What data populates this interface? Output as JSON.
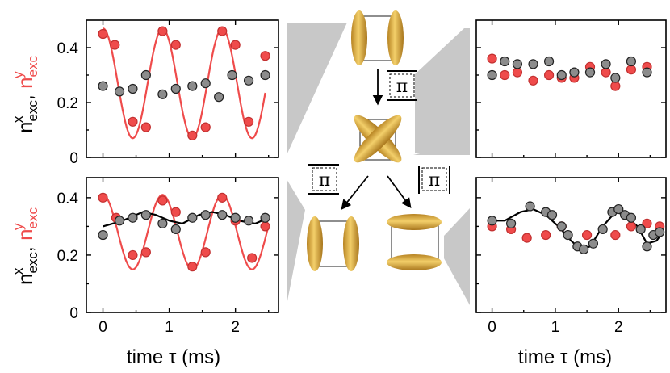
{
  "colors": {
    "x_series": "#8c8c8c",
    "y_series": "#ef4b4b",
    "y_line": "#ef4b4b",
    "x_line": "#000000",
    "ion": "#d9a43a"
  },
  "labels": {
    "xlabel": "time τ (ms)",
    "y_base": "n",
    "y_sub": "exc",
    "y_sup_x": "x",
    "y_sup_y": "y",
    "comma": " , ",
    "pi": "π"
  },
  "chart_data": [
    {
      "type": "scatter",
      "panel": "top-left",
      "xlim": [
        -0.25,
        2.65
      ],
      "ylim": [
        0,
        0.5
      ],
      "xticks": [
        0,
        1,
        2
      ],
      "yticks": [
        0,
        0.2,
        0.4
      ],
      "xticklabels": [],
      "yticklabels": [
        "0",
        "0.2",
        "0.4"
      ],
      "series": [
        {
          "id": "y",
          "points": [
            [
              0,
              0.45
            ],
            [
              0.18,
              0.41
            ],
            [
              0.45,
              0.13
            ],
            [
              0.65,
              0.11
            ],
            [
              0.9,
              0.46
            ],
            [
              1.1,
              0.41
            ],
            [
              1.35,
              0.08
            ],
            [
              1.55,
              0.11
            ],
            [
              1.8,
              0.46
            ],
            [
              2.0,
              0.41
            ],
            [
              2.2,
              0.13
            ],
            [
              2.45,
              0.37
            ]
          ]
        },
        {
          "id": "x",
          "points": [
            [
              0,
              0.26
            ],
            [
              0.25,
              0.24
            ],
            [
              0.45,
              0.25
            ],
            [
              0.65,
              0.3
            ],
            [
              0.9,
              0.23
            ],
            [
              1.1,
              0.25
            ],
            [
              1.35,
              0.26
            ],
            [
              1.55,
              0.27
            ],
            [
              1.75,
              0.22
            ],
            [
              1.95,
              0.3
            ],
            [
              2.2,
              0.28
            ],
            [
              2.45,
              0.3
            ]
          ]
        }
      ],
      "fit": {
        "series": "y",
        "x_range": [
          0.0,
          2.45
        ],
        "mean": 0.27,
        "amplitude": 0.2,
        "period": 0.9,
        "phase": -0.8
      }
    },
    {
      "type": "scatter",
      "panel": "bottom-left",
      "xlim": [
        -0.25,
        2.65
      ],
      "ylim": [
        0,
        0.47
      ],
      "xticks": [
        0,
        1,
        2
      ],
      "yticks": [
        0,
        0.2,
        0.4
      ],
      "xticklabels": [
        "0",
        "1",
        "2"
      ],
      "yticklabels": [
        "0",
        "0.2",
        "0.4"
      ],
      "series": [
        {
          "id": "y",
          "points": [
            [
              0,
              0.4
            ],
            [
              0.2,
              0.33
            ],
            [
              0.45,
              0.2
            ],
            [
              0.65,
              0.21
            ],
            [
              0.9,
              0.39
            ],
            [
              1.1,
              0.35
            ],
            [
              1.35,
              0.16
            ],
            [
              1.55,
              0.21
            ],
            [
              1.8,
              0.4
            ],
            [
              2.0,
              0.32
            ],
            [
              2.25,
              0.19
            ],
            [
              2.45,
              0.3
            ]
          ]
        },
        {
          "id": "x",
          "points": [
            [
              0,
              0.27
            ],
            [
              0.25,
              0.32
            ],
            [
              0.45,
              0.33
            ],
            [
              0.65,
              0.34
            ],
            [
              0.9,
              0.31
            ],
            [
              1.1,
              0.29
            ],
            [
              1.35,
              0.33
            ],
            [
              1.55,
              0.34
            ],
            [
              1.8,
              0.34
            ],
            [
              2.0,
              0.33
            ],
            [
              2.2,
              0.32
            ],
            [
              2.45,
              0.33
            ]
          ]
        }
      ],
      "fit_y": {
        "x_range": [
          0.0,
          2.5
        ],
        "mean": 0.28,
        "amplitude": 0.13,
        "period": 0.9,
        "phase": -0.8
      },
      "fit_x": {
        "x_range": [
          0.0,
          2.5
        ],
        "points": [
          [
            0,
            0.3
          ],
          [
            0.3,
            0.32
          ],
          [
            0.6,
            0.35
          ],
          [
            0.8,
            0.34
          ],
          [
            1.0,
            0.32
          ],
          [
            1.2,
            0.31
          ],
          [
            1.45,
            0.34
          ],
          [
            1.65,
            0.35
          ],
          [
            1.85,
            0.34
          ],
          [
            2.05,
            0.32
          ],
          [
            2.3,
            0.31
          ],
          [
            2.5,
            0.33
          ]
        ]
      }
    },
    {
      "type": "scatter",
      "panel": "top-right",
      "xlim": [
        -0.25,
        2.75
      ],
      "ylim": [
        0,
        0.5
      ],
      "xticks": [
        0,
        1,
        2
      ],
      "yticks": [
        0,
        0.2,
        0.4
      ],
      "xticklabels": [],
      "yticklabels": [],
      "series": [
        {
          "id": "y",
          "points": [
            [
              0,
              0.36
            ],
            [
              0.2,
              0.3
            ],
            [
              0.4,
              0.31
            ],
            [
              0.65,
              0.28
            ],
            [
              0.9,
              0.3
            ],
            [
              1.1,
              0.29
            ],
            [
              1.3,
              0.29
            ],
            [
              1.55,
              0.33
            ],
            [
              1.8,
              0.31
            ],
            [
              1.95,
              0.26
            ],
            [
              2.2,
              0.32
            ],
            [
              2.45,
              0.33
            ]
          ]
        },
        {
          "id": "x",
          "points": [
            [
              0,
              0.3
            ],
            [
              0.2,
              0.35
            ],
            [
              0.4,
              0.34
            ],
            [
              0.65,
              0.34
            ],
            [
              0.9,
              0.35
            ],
            [
              1.1,
              0.3
            ],
            [
              1.3,
              0.31
            ],
            [
              1.55,
              0.31
            ],
            [
              1.8,
              0.34
            ],
            [
              1.95,
              0.29
            ],
            [
              2.2,
              0.35
            ],
            [
              2.45,
              0.31
            ]
          ]
        }
      ]
    },
    {
      "type": "scatter",
      "panel": "bottom-right",
      "xlim": [
        -0.25,
        2.75
      ],
      "ylim": [
        0,
        0.47
      ],
      "xticks": [
        0,
        1,
        2
      ],
      "yticks": [
        0,
        0.2,
        0.4
      ],
      "xticklabels": [
        "0",
        "1",
        "2"
      ],
      "yticklabels": [],
      "series": [
        {
          "id": "y",
          "points": [
            [
              0,
              0.3
            ],
            [
              0.3,
              0.29
            ],
            [
              0.55,
              0.26
            ],
            [
              0.85,
              0.27
            ],
            [
              1.1,
              0.3
            ],
            [
              1.5,
              0.27
            ],
            [
              1.95,
              0.27
            ],
            [
              2.2,
              0.3
            ],
            [
              2.45,
              0.31
            ],
            [
              2.65,
              0.3
            ]
          ]
        },
        {
          "id": "x",
          "points": [
            [
              0,
              0.32
            ],
            [
              0.3,
              0.31
            ],
            [
              0.6,
              0.37
            ],
            [
              0.85,
              0.35
            ],
            [
              0.95,
              0.34
            ],
            [
              1.1,
              0.3
            ],
            [
              1.2,
              0.27
            ],
            [
              1.35,
              0.23
            ],
            [
              1.45,
              0.22
            ],
            [
              1.6,
              0.24
            ],
            [
              1.75,
              0.29
            ],
            [
              1.9,
              0.35
            ],
            [
              2.0,
              0.36
            ],
            [
              2.1,
              0.34
            ],
            [
              2.2,
              0.33
            ],
            [
              2.35,
              0.29
            ],
            [
              2.45,
              0.23
            ],
            [
              2.55,
              0.27
            ],
            [
              2.65,
              0.28
            ]
          ]
        }
      ],
      "fit_x": {
        "x_range": [
          0.0,
          2.7
        ],
        "points": [
          [
            0,
            0.32
          ],
          [
            0.2,
            0.32
          ],
          [
            0.45,
            0.35
          ],
          [
            0.65,
            0.36
          ],
          [
            0.85,
            0.34
          ],
          [
            1.05,
            0.3
          ],
          [
            1.25,
            0.25
          ],
          [
            1.4,
            0.22
          ],
          [
            1.55,
            0.23
          ],
          [
            1.75,
            0.3
          ],
          [
            1.95,
            0.35
          ],
          [
            2.1,
            0.34
          ],
          [
            2.3,
            0.3
          ],
          [
            2.45,
            0.24
          ],
          [
            2.6,
            0.25
          ],
          [
            2.7,
            0.28
          ]
        ]
      }
    }
  ]
}
